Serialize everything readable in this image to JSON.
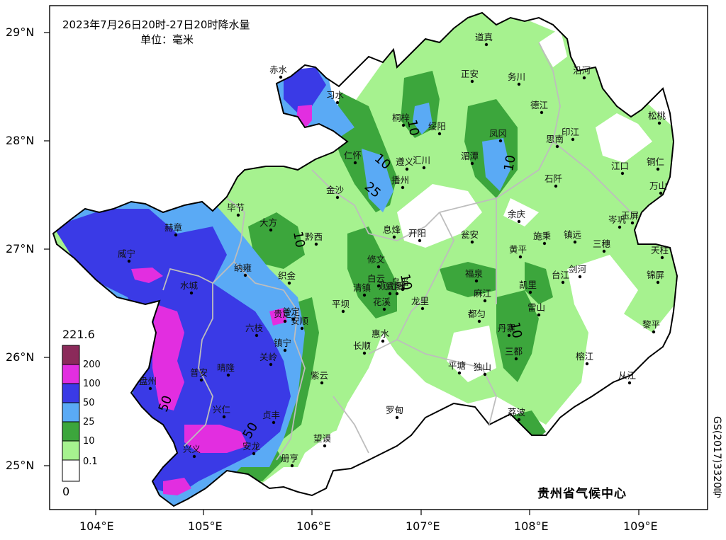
{
  "title": "2023年7月26日20时-27日20时降水量",
  "unit": "单位：毫米",
  "agency": "贵州省气候中心",
  "map_code": "GS(2017)3320号",
  "lat_labels": [
    "29°N",
    "28°N",
    "27°N",
    "26°N",
    "25°N"
  ],
  "lon_labels": [
    "104°E",
    "105°E",
    "106°E",
    "107°E",
    "108°E",
    "109°E"
  ],
  "legend": {
    "max": "221.6",
    "min": "0",
    "levels": [
      {
        "label": "200",
        "color": "#8b2a5a"
      },
      {
        "label": "100",
        "color": "#e22ee0"
      },
      {
        "label": "50",
        "color": "#3a3ae6"
      },
      {
        "label": "25",
        "color": "#5aaaf5"
      },
      {
        "label": "10",
        "color": "#3ca63c"
      },
      {
        "label": "0.1",
        "color": "#a6f28f"
      },
      {
        "label": "",
        "color": "#ffffff"
      }
    ]
  },
  "colors": {
    "heavy": "#8b2a5a",
    "c100": "#e22ee0",
    "c50": "#3a3ae6",
    "c25": "#5aaaf5",
    "c10": "#3ca63c",
    "c01": "#a6f28f"
  },
  "contour_labels": [
    "10",
    "10",
    "10",
    "25",
    "10",
    "10",
    "50",
    "50",
    "10"
  ],
  "cities": [
    {
      "name": "道真"
    },
    {
      "name": "正安"
    },
    {
      "name": "务川"
    },
    {
      "name": "沿河"
    },
    {
      "name": "赤水"
    },
    {
      "name": "习水"
    },
    {
      "name": "桐梓"
    },
    {
      "name": "绥阳"
    },
    {
      "name": "凤冈"
    },
    {
      "name": "德江"
    },
    {
      "name": "印江"
    },
    {
      "name": "思南"
    },
    {
      "name": "松桃"
    },
    {
      "name": "仁怀"
    },
    {
      "name": "遵义"
    },
    {
      "name": "汇川"
    },
    {
      "name": "湄潭"
    },
    {
      "name": "石阡"
    },
    {
      "name": "江口"
    },
    {
      "name": "铜仁"
    },
    {
      "name": "万山"
    },
    {
      "name": "播州"
    },
    {
      "name": "金沙"
    },
    {
      "name": "毕节"
    },
    {
      "name": "赫章"
    },
    {
      "name": "大方"
    },
    {
      "name": "黔西"
    },
    {
      "name": "息烽"
    },
    {
      "name": "开阳"
    },
    {
      "name": "瓮安"
    },
    {
      "name": "余庆"
    },
    {
      "name": "施秉"
    },
    {
      "name": "镇远"
    },
    {
      "name": "岑巩"
    },
    {
      "name": "玉屏"
    },
    {
      "name": "三穗"
    },
    {
      "name": "天柱"
    },
    {
      "name": "威宁"
    },
    {
      "name": "纳雍"
    },
    {
      "name": "织金"
    },
    {
      "name": "修文"
    },
    {
      "name": "白云"
    },
    {
      "name": "乌当"
    },
    {
      "name": "黄平"
    },
    {
      "name": "剑河"
    },
    {
      "name": "锦屏"
    },
    {
      "name": "水城"
    },
    {
      "name": "清镇"
    },
    {
      "name": "观山湖"
    },
    {
      "name": "贵阳"
    },
    {
      "name": "贵定"
    },
    {
      "name": "福泉"
    },
    {
      "name": "麻江"
    },
    {
      "name": "凯里"
    },
    {
      "name": "台江"
    },
    {
      "name": "龙里"
    },
    {
      "name": "花溪"
    },
    {
      "name": "平坝"
    },
    {
      "name": "六枝"
    },
    {
      "name": "普定"
    },
    {
      "name": "安顺"
    },
    {
      "name": "都匀"
    },
    {
      "name": "雷山"
    },
    {
      "name": "黎平"
    },
    {
      "name": "惠水"
    },
    {
      "name": "丹寨"
    },
    {
      "name": "镇宁"
    },
    {
      "name": "长顺"
    },
    {
      "name": "关岭"
    },
    {
      "name": "三都"
    },
    {
      "name": "榕江"
    },
    {
      "name": "盘州"
    },
    {
      "name": "普安"
    },
    {
      "name": "晴隆"
    },
    {
      "name": "紫云"
    },
    {
      "name": "平塘"
    },
    {
      "name": "独山"
    },
    {
      "name": "从江"
    },
    {
      "name": "兴仁"
    },
    {
      "name": "贞丰"
    },
    {
      "name": "罗甸"
    },
    {
      "name": "荔波"
    },
    {
      "name": "兴义"
    },
    {
      "name": "安龙"
    },
    {
      "name": "望谟"
    },
    {
      "name": "册亨"
    }
  ]
}
